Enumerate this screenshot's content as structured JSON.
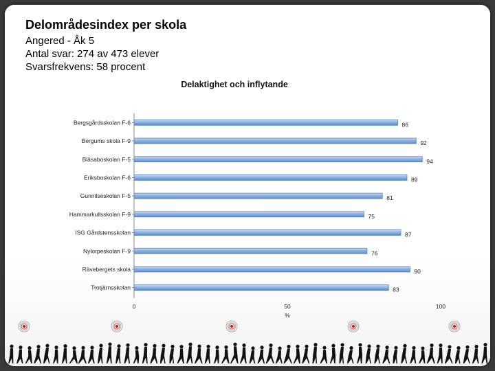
{
  "header": {
    "title": "Delområdesindex per skola",
    "line1": "Angered - Åk 5",
    "line2": "Antal svar: 274 av 473 elever",
    "line3": "Svarsfrekvens: 58 procent"
  },
  "chart_data": {
    "type": "bar",
    "orientation": "horizontal",
    "title": "Delaktighet och inflytande",
    "categories": [
      "Bergsgårdsskolan F-6",
      "Bergums skola F-9",
      "Bläsaboskolan F-5",
      "Eriksboskolan F-6",
      "Gunnilseskolan F-5",
      "Hammarkullsskolan F-9",
      "ISG Gårdstensskolan",
      "Nylorpeskolan F-9",
      "Rävebergets skola",
      "Trotjärnsskolan"
    ],
    "values": [
      86,
      92,
      94,
      89,
      81,
      75,
      87,
      76,
      90,
      83
    ],
    "xlim": [
      0,
      100
    ],
    "xticks": [
      0,
      50,
      100
    ],
    "xlabel": "%",
    "bar_color": "#7ea6d8",
    "bar_edge": "#4f7fbf"
  },
  "footer": {
    "decoration": "walking-people-silhouettes-with-target-icons"
  }
}
